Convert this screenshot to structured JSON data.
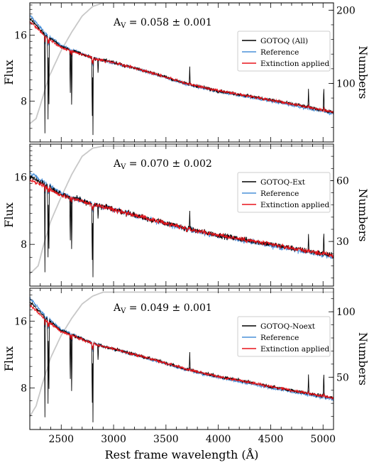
{
  "chart_data": {
    "type": "line",
    "xlabel": "Rest frame wavelength (Å)",
    "x_ticks": [
      2500,
      3000,
      3500,
      4000,
      4500,
      5000
    ],
    "xlim": [
      2200,
      5100
    ],
    "ylabel_left": "Flux",
    "ylabel_right": "Numbers",
    "colors": {
      "data": "#000000",
      "reference": "#4a90d9",
      "extinction": "#e8141b",
      "counts": "#c8c8c8"
    },
    "panels": [
      {
        "annotation": "A",
        "annotation_sub": "V",
        "annotation_value": " = 0.058 ± 0.001",
        "flux_ticks": [
          "16",
          "8"
        ],
        "flux_tick_values": [
          16,
          8
        ],
        "flux_log_range": [
          5.2,
          22.5
        ],
        "numbers_ticks": [
          "200",
          "100"
        ],
        "numbers_tick_values": [
          200,
          100
        ],
        "numbers_range": [
          20,
          210
        ],
        "legend": [
          "GOTOQ (All)",
          "Reference",
          "Extinction applied"
        ],
        "curve_anchors": [
          [
            2200,
            19.0
          ],
          [
            2350,
            16.0
          ],
          [
            2500,
            14.2
          ],
          [
            2800,
            12.6
          ],
          [
            3000,
            12.0
          ],
          [
            3300,
            11.0
          ],
          [
            3700,
            9.6
          ],
          [
            4000,
            8.9
          ],
          [
            4500,
            8.1
          ],
          [
            5100,
            7.1
          ]
        ],
        "counts_anchors": [
          [
            2200,
            45
          ],
          [
            2260,
            52
          ],
          [
            2300,
            70
          ],
          [
            2380,
            108
          ],
          [
            2500,
            145
          ],
          [
            2600,
            170
          ],
          [
            2700,
            192
          ],
          [
            2800,
            205
          ],
          [
            2900,
            210
          ],
          [
            5100,
            210
          ]
        ],
        "absorption_lines": [
          [
            2344,
            5.7
          ],
          [
            2374,
            6.6
          ],
          [
            2382,
            5.5
          ],
          [
            2586,
            7.3
          ],
          [
            2600,
            6.0
          ],
          [
            2796,
            5.2
          ],
          [
            2803,
            5.6
          ],
          [
            2852,
            10.3
          ]
        ],
        "emission_lines": [
          [
            3727,
            11.5
          ],
          [
            4861,
            9.1
          ],
          [
            5007,
            9.6
          ]
        ],
        "noise": 0.018
      },
      {
        "annotation": "A",
        "annotation_sub": "V",
        "annotation_value": " = 0.070 ± 0.002",
        "flux_ticks": [
          "16",
          "8"
        ],
        "flux_tick_values": [
          16,
          8
        ],
        "flux_log_range": [
          5.2,
          22.5
        ],
        "numbers_ticks": [
          "60",
          "30"
        ],
        "numbers_tick_values": [
          60,
          30
        ],
        "numbers_range": [
          8,
          78
        ],
        "legend": [
          "GOTOQ-Ext",
          "Reference",
          "Extinction applied"
        ],
        "curve_anchors": [
          [
            2200,
            16.0
          ],
          [
            2350,
            14.8
          ],
          [
            2500,
            13.4
          ],
          [
            2800,
            12.1
          ],
          [
            3000,
            11.5
          ],
          [
            3300,
            10.5
          ],
          [
            3700,
            9.4
          ],
          [
            4000,
            8.8
          ],
          [
            4500,
            8.0
          ],
          [
            5100,
            7.1
          ]
        ],
        "counts_anchors": [
          [
            2200,
            14
          ],
          [
            2280,
            18
          ],
          [
            2330,
            28
          ],
          [
            2400,
            40
          ],
          [
            2500,
            52
          ],
          [
            2600,
            63
          ],
          [
            2700,
            72
          ],
          [
            2800,
            76
          ],
          [
            2900,
            77
          ],
          [
            5100,
            77
          ]
        ],
        "absorption_lines": [
          [
            2344,
            6.0
          ],
          [
            2374,
            7.0
          ],
          [
            2382,
            5.7
          ],
          [
            2586,
            7.0
          ],
          [
            2600,
            6.1
          ],
          [
            2796,
            5.3
          ],
          [
            2803,
            5.7
          ],
          [
            2852,
            10.0
          ]
        ],
        "emission_lines": [
          [
            3727,
            11.3
          ],
          [
            4861,
            8.9
          ],
          [
            5007,
            9.4
          ]
        ],
        "noise": 0.03
      },
      {
        "annotation": "A",
        "annotation_sub": "V",
        "annotation_value": " = 0.049 ± 0.001",
        "flux_ticks": [
          "16",
          "8"
        ],
        "flux_tick_values": [
          16,
          8
        ],
        "flux_log_range": [
          5.2,
          22.5
        ],
        "numbers_ticks": [
          "100",
          "50"
        ],
        "numbers_tick_values": [
          100,
          50
        ],
        "numbers_range": [
          10,
          118
        ],
        "legend": [
          "GOTOQ-Noext",
          "Reference",
          "Extinction applied"
        ],
        "curve_anchors": [
          [
            2200,
            19.5
          ],
          [
            2350,
            16.5
          ],
          [
            2500,
            14.5
          ],
          [
            2800,
            12.7
          ],
          [
            3000,
            12.0
          ],
          [
            3300,
            11.0
          ],
          [
            3700,
            9.7
          ],
          [
            4000,
            9.0
          ],
          [
            4500,
            8.1
          ],
          [
            5100,
            7.2
          ]
        ],
        "counts_anchors": [
          [
            2200,
            20
          ],
          [
            2260,
            28
          ],
          [
            2320,
            45
          ],
          [
            2400,
            65
          ],
          [
            2500,
            82
          ],
          [
            2600,
            95
          ],
          [
            2700,
            106
          ],
          [
            2800,
            112
          ],
          [
            2900,
            115
          ],
          [
            5100,
            115
          ]
        ],
        "absorption_lines": [
          [
            2344,
            5.9
          ],
          [
            2374,
            6.8
          ],
          [
            2382,
            5.6
          ],
          [
            2586,
            7.3
          ],
          [
            2600,
            6.0
          ],
          [
            2796,
            5.2
          ],
          [
            2803,
            5.6
          ],
          [
            2852,
            10.2
          ]
        ],
        "emission_lines": [
          [
            3727,
            11.6
          ],
          [
            4861,
            9.2
          ],
          [
            5007,
            9.7
          ]
        ],
        "noise": 0.018
      }
    ]
  }
}
